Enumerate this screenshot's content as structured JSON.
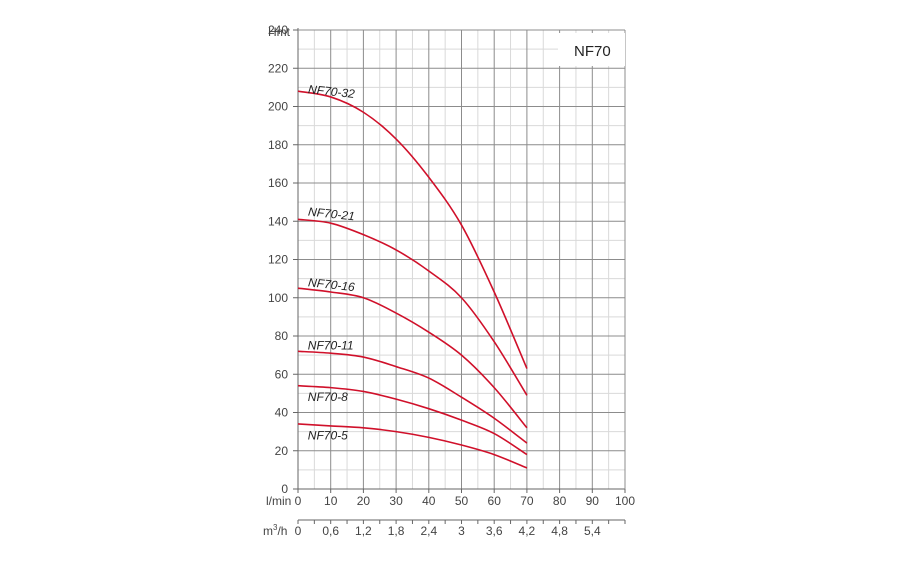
{
  "chart_data": {
    "type": "line",
    "title": "NF70",
    "ylabel": "Hmt",
    "xlabel": "l/min",
    "x2label": "m³/h",
    "x2label_base": "m",
    "x2label_sup": "3",
    "x2label_unit": "/h",
    "ylim": [
      0,
      240
    ],
    "xlim": [
      0,
      100
    ],
    "y_ticks": [
      "0",
      "20",
      "40",
      "60",
      "80",
      "100",
      "120",
      "140",
      "160",
      "180",
      "200",
      "220",
      "240"
    ],
    "x_ticks": [
      "0",
      "10",
      "20",
      "30",
      "40",
      "50",
      "60",
      "70",
      "80",
      "90",
      "100"
    ],
    "x2_ticks": [
      {
        "label": "0",
        "x": 0
      },
      {
        "label": "0,6",
        "x": 10
      },
      {
        "label": "1,2",
        "x": 20
      },
      {
        "label": "1,8",
        "x": 30
      },
      {
        "label": "2,4",
        "x": 40
      },
      {
        "label": "3",
        "x": 50
      },
      {
        "label": "3,6",
        "x": 60
      },
      {
        "label": "4,2",
        "x": 70
      },
      {
        "label": "4,8",
        "x": 80
      },
      {
        "label": "5,4",
        "x": 90
      }
    ],
    "grid": true,
    "line_color": "#d0102a",
    "series": [
      {
        "name": "NF70-32",
        "label_x": 3,
        "label_y": 207,
        "x": [
          0,
          10,
          20,
          30,
          40,
          50,
          60,
          70
        ],
        "y": [
          208,
          205,
          197,
          183,
          163,
          138,
          103,
          63
        ]
      },
      {
        "name": "NF70-21",
        "label_x": 3,
        "label_y": 143,
        "x": [
          0,
          10,
          20,
          30,
          40,
          50,
          60,
          70
        ],
        "y": [
          141,
          139,
          133,
          125,
          114,
          100,
          77,
          49
        ]
      },
      {
        "name": "NF70-16",
        "label_x": 3,
        "label_y": 106,
        "x": [
          0,
          10,
          20,
          30,
          40,
          50,
          60,
          70
        ],
        "y": [
          105,
          103,
          100,
          92,
          82,
          70,
          53,
          32
        ]
      },
      {
        "name": "NF70-11",
        "label_x": 3,
        "label_y": 73,
        "x": [
          0,
          10,
          20,
          30,
          40,
          50,
          60,
          70
        ],
        "y": [
          72,
          71,
          69,
          64,
          58,
          48,
          37,
          24
        ]
      },
      {
        "name": "NF70-8",
        "label_x": 3,
        "label_y": 46,
        "x": [
          0,
          10,
          20,
          30,
          40,
          50,
          60,
          70
        ],
        "y": [
          54,
          53,
          51,
          47,
          42,
          36,
          29,
          18
        ]
      },
      {
        "name": "NF70-5",
        "label_x": 3,
        "label_y": 26,
        "x": [
          0,
          10,
          20,
          30,
          40,
          50,
          60,
          70
        ],
        "y": [
          34,
          33,
          32,
          30,
          27,
          23,
          18,
          11
        ]
      }
    ]
  }
}
